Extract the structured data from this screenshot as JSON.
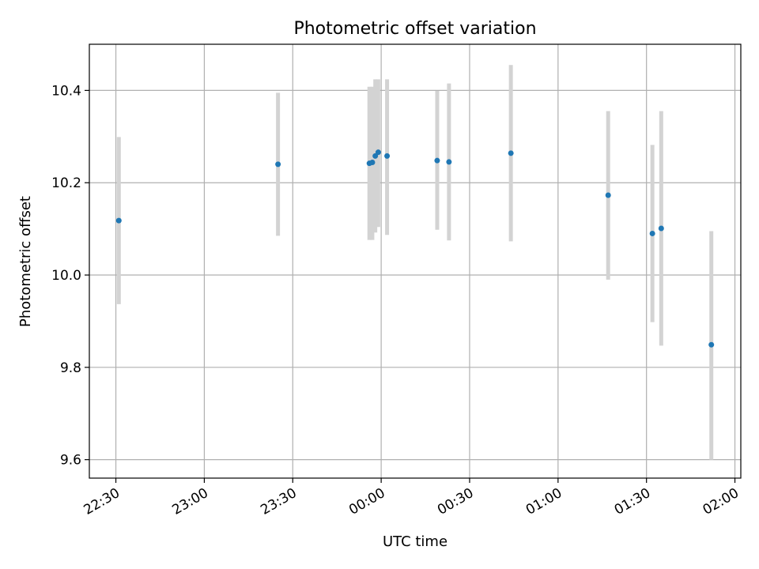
{
  "chart_data": {
    "type": "scatter",
    "title": "Photometric offset variation",
    "xlabel": "UTC time",
    "ylabel": "Photometric offset",
    "x_tick_labels": [
      "22:30",
      "23:00",
      "23:30",
      "00:00",
      "00:30",
      "01:00",
      "01:30",
      "02:00"
    ],
    "y_tick_labels": [
      "9.6",
      "9.8",
      "10.0",
      "10.2",
      "10.4"
    ],
    "xlim": [
      "22:21",
      "02:02"
    ],
    "ylim": [
      9.56,
      10.5
    ],
    "grid": true,
    "marker_color": "#1f77b4",
    "errorbar_color": "#d3d3d3",
    "points": [
      {
        "time": "22:31",
        "value": 10.118,
        "low": 9.937,
        "high": 10.299
      },
      {
        "time": "23:25",
        "value": 10.24,
        "low": 10.085,
        "high": 10.395
      },
      {
        "time": "23:56",
        "value": 10.242,
        "low": 10.076,
        "high": 10.408
      },
      {
        "time": "23:57",
        "value": 10.244,
        "low": 10.076,
        "high": 10.408
      },
      {
        "time": "23:58",
        "value": 10.258,
        "low": 10.092,
        "high": 10.424
      },
      {
        "time": "23:59",
        "value": 10.266,
        "low": 10.104,
        "high": 10.424
      },
      {
        "time": "00:02",
        "value": 10.258,
        "low": 10.087,
        "high": 10.424
      },
      {
        "time": "00:19",
        "value": 10.248,
        "low": 10.098,
        "high": 10.399
      },
      {
        "time": "00:23",
        "value": 10.245,
        "low": 10.075,
        "high": 10.415
      },
      {
        "time": "00:44",
        "value": 10.264,
        "low": 10.073,
        "high": 10.455
      },
      {
        "time": "01:17",
        "value": 10.173,
        "low": 9.99,
        "high": 10.355
      },
      {
        "time": "01:32",
        "value": 10.09,
        "low": 9.898,
        "high": 10.282
      },
      {
        "time": "01:35",
        "value": 10.101,
        "low": 9.847,
        "high": 10.355
      },
      {
        "time": "01:52",
        "value": 9.849,
        "low": 9.6,
        "high": 10.095
      }
    ]
  }
}
